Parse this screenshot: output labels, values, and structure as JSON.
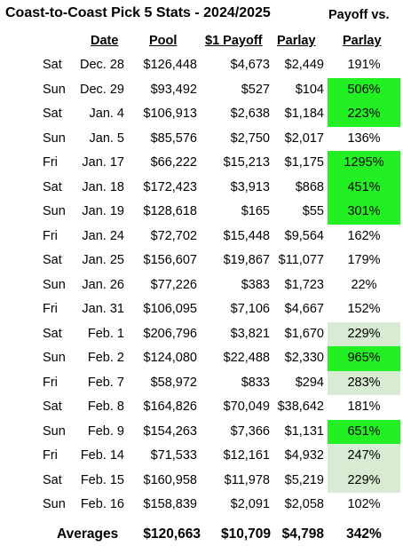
{
  "title": "Coast-to-Coast Pick 5 Stats - 2024/2025",
  "header": {
    "date": "Date",
    "pool": "Pool",
    "payoff": "$1 Payoff",
    "parlay": "Parlay",
    "payoff_vs_line1": "Payoff vs.",
    "payoff_vs_line2": "Parlay"
  },
  "highlight_colors": {
    "bright": "#22f022",
    "light": "#d8ecd3"
  },
  "rows": [
    {
      "day": "Sat",
      "date": "Dec. 28",
      "pool": "$126,448",
      "payoff": "$4,673",
      "parlay": "$2,449",
      "pct": "191%",
      "highlight": "none"
    },
    {
      "day": "Sun",
      "date": "Dec. 29",
      "pool": "$93,492",
      "payoff": "$527",
      "parlay": "$104",
      "pct": "506%",
      "highlight": "bright"
    },
    {
      "day": "Sat",
      "date": "Jan. 4",
      "pool": "$106,913",
      "payoff": "$2,638",
      "parlay": "$1,184",
      "pct": "223%",
      "highlight": "bright"
    },
    {
      "day": "Sun",
      "date": "Jan. 5",
      "pool": "$85,576",
      "payoff": "$2,750",
      "parlay": "$2,017",
      "pct": "136%",
      "highlight": "none"
    },
    {
      "day": "Fri",
      "date": "Jan. 17",
      "pool": "$66,222",
      "payoff": "$15,213",
      "parlay": "$1,175",
      "pct": "1295%",
      "highlight": "bright"
    },
    {
      "day": "Sat",
      "date": "Jan. 18",
      "pool": "$172,423",
      "payoff": "$3,913",
      "parlay": "$868",
      "pct": "451%",
      "highlight": "bright"
    },
    {
      "day": "Sun",
      "date": "Jan. 19",
      "pool": "$128,618",
      "payoff": "$165",
      "parlay": "$55",
      "pct": "301%",
      "highlight": "bright"
    },
    {
      "day": "Fri",
      "date": "Jan. 24",
      "pool": "$72,702",
      "payoff": "$15,448",
      "parlay": "$9,564",
      "pct": "162%",
      "highlight": "none"
    },
    {
      "day": "Sat",
      "date": "Jan. 25",
      "pool": "$156,607",
      "payoff": "$19,867",
      "parlay": "$11,077",
      "pct": "179%",
      "highlight": "none"
    },
    {
      "day": "Sun",
      "date": "Jan. 26",
      "pool": "$77,226",
      "payoff": "$383",
      "parlay": "$1,723",
      "pct": "22%",
      "highlight": "none"
    },
    {
      "day": "Fri",
      "date": "Jan. 31",
      "pool": "$106,095",
      "payoff": "$7,106",
      "parlay": "$4,667",
      "pct": "152%",
      "highlight": "none"
    },
    {
      "day": "Sat",
      "date": "Feb. 1",
      "pool": "$206,796",
      "payoff": "$3,821",
      "parlay": "$1,670",
      "pct": "229%",
      "highlight": "light"
    },
    {
      "day": "Sun",
      "date": "Feb. 2",
      "pool": "$124,080",
      "payoff": "$22,488",
      "parlay": "$2,330",
      "pct": "965%",
      "highlight": "bright"
    },
    {
      "day": "Fri",
      "date": "Feb. 7",
      "pool": "$58,972",
      "payoff": "$833",
      "parlay": "$294",
      "pct": "283%",
      "highlight": "light"
    },
    {
      "day": "Sat",
      "date": "Feb. 8",
      "pool": "$164,826",
      "payoff": "$70,049",
      "parlay": "$38,642",
      "pct": "181%",
      "highlight": "none"
    },
    {
      "day": "Sun",
      "date": "Feb. 9",
      "pool": "$154,263",
      "payoff": "$7,366",
      "parlay": "$1,131",
      "pct": "651%",
      "highlight": "bright"
    },
    {
      "day": "Fri",
      "date": "Feb. 14",
      "pool": "$71,533",
      "payoff": "$12,161",
      "parlay": "$4,932",
      "pct": "247%",
      "highlight": "light"
    },
    {
      "day": "Sat",
      "date": "Feb. 15",
      "pool": "$160,958",
      "payoff": "$11,978",
      "parlay": "$5,219",
      "pct": "229%",
      "highlight": "light"
    },
    {
      "day": "Sun",
      "date": "Feb. 16",
      "pool": "$158,839",
      "payoff": "$2,091",
      "parlay": "$2,058",
      "pct": "102%",
      "highlight": "none"
    }
  ],
  "averages": {
    "label": "Averages",
    "pool": "$120,663",
    "payoff": "$10,709",
    "parlay": "$4,798",
    "pct": "342%"
  }
}
